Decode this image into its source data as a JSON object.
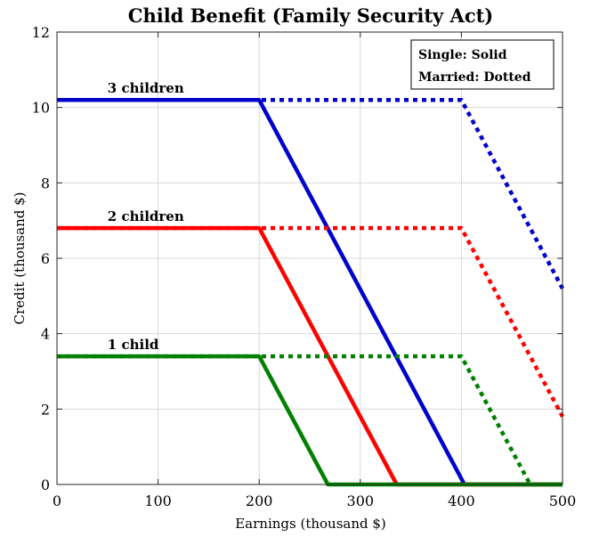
{
  "chart_data": {
    "type": "line",
    "title": "Child Benefit (Family Security Act)",
    "xlabel": "Earnings (thousand $)",
    "ylabel": "Credit (thousand $)",
    "xlim": [
      0,
      500
    ],
    "ylim": [
      0,
      12
    ],
    "xticks": [
      0,
      100,
      200,
      300,
      400,
      500
    ],
    "yticks": [
      0,
      2,
      4,
      6,
      8,
      10,
      12
    ],
    "grid": true,
    "legend": {
      "placement": "top-right",
      "entries": [
        "Single: Solid",
        "Married: Dotted"
      ]
    },
    "series": [
      {
        "name": "3 children",
        "color": "#0000cc",
        "style": "solid",
        "points": [
          [
            0,
            10.2
          ],
          [
            200,
            10.2
          ],
          [
            403,
            0
          ],
          [
            500,
            0
          ]
        ]
      },
      {
        "name": "3 children",
        "color": "#0000cc",
        "style": "dotted",
        "points": [
          [
            0,
            10.2
          ],
          [
            400,
            10.2
          ],
          [
            500,
            5.2
          ]
        ]
      },
      {
        "name": "2 children",
        "color": "#ff0000",
        "style": "solid",
        "points": [
          [
            0,
            6.8
          ],
          [
            200,
            6.8
          ],
          [
            336,
            0
          ],
          [
            500,
            0
          ]
        ]
      },
      {
        "name": "2 children",
        "color": "#ff0000",
        "style": "dotted",
        "points": [
          [
            0,
            6.8
          ],
          [
            400,
            6.8
          ],
          [
            500,
            1.8
          ]
        ]
      },
      {
        "name": "1 child",
        "color": "#008000",
        "style": "solid",
        "points": [
          [
            0,
            3.4
          ],
          [
            200,
            3.4
          ],
          [
            268,
            0
          ],
          [
            500,
            0
          ]
        ]
      },
      {
        "name": "1 child",
        "color": "#008000",
        "style": "dotted",
        "points": [
          [
            0,
            3.4
          ],
          [
            400,
            3.4
          ],
          [
            468,
            0
          ],
          [
            500,
            0
          ]
        ]
      }
    ],
    "annotations": [
      {
        "text": "3 children",
        "x": 50,
        "y": 10.2
      },
      {
        "text": "2 children",
        "x": 50,
        "y": 6.8
      },
      {
        "text": "1 child",
        "x": 50,
        "y": 3.4
      }
    ]
  }
}
